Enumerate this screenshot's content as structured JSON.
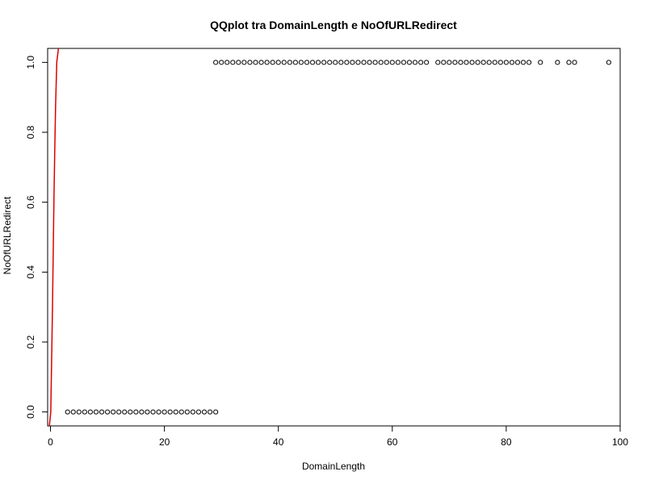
{
  "chart_data": {
    "type": "scatter",
    "title": "QQplot tra DomainLength e NoOfURLRedirect",
    "xlabel": "DomainLength",
    "ylabel": "NoOfURLRedirect",
    "xlim": [
      -0.5,
      100
    ],
    "ylim": [
      -0.04,
      1.04
    ],
    "xticks": [
      "0",
      "20",
      "40",
      "60",
      "80",
      "100"
    ],
    "yticks": [
      "0.0",
      "0.2",
      "0.4",
      "0.6",
      "0.8",
      "1.0"
    ],
    "grid": false,
    "legend": "none",
    "point_color": "#000000",
    "line_color": "#dd0000",
    "series": [
      {
        "values_at_0": [
          3,
          4,
          5,
          6,
          7,
          8,
          9,
          10,
          11,
          12,
          13,
          14,
          15,
          16,
          17,
          18,
          19,
          20,
          21,
          22,
          23,
          24,
          25,
          26,
          27,
          28,
          29
        ],
        "values_at_1": [
          29,
          30,
          31,
          32,
          33,
          34,
          35,
          36,
          37,
          38,
          39,
          40,
          41,
          42,
          43,
          44,
          45,
          46,
          47,
          48,
          49,
          50,
          51,
          52,
          53,
          54,
          55,
          56,
          57,
          58,
          59,
          60,
          61,
          62,
          63,
          64,
          65,
          66,
          68,
          69,
          70,
          71,
          72,
          73,
          74,
          75,
          76,
          77,
          78,
          79,
          80,
          81,
          82,
          83,
          84,
          86,
          89,
          91,
          92,
          98
        ]
      }
    ],
    "qq_line": [
      [
        -0.2,
        -0.04
      ],
      [
        0.05,
        0.0
      ],
      [
        0.15,
        0.1
      ],
      [
        0.35,
        0.3
      ],
      [
        0.6,
        0.6
      ],
      [
        0.75,
        0.75
      ],
      [
        0.9,
        0.88
      ],
      [
        1.1,
        1.0
      ],
      [
        1.4,
        1.04
      ]
    ]
  }
}
